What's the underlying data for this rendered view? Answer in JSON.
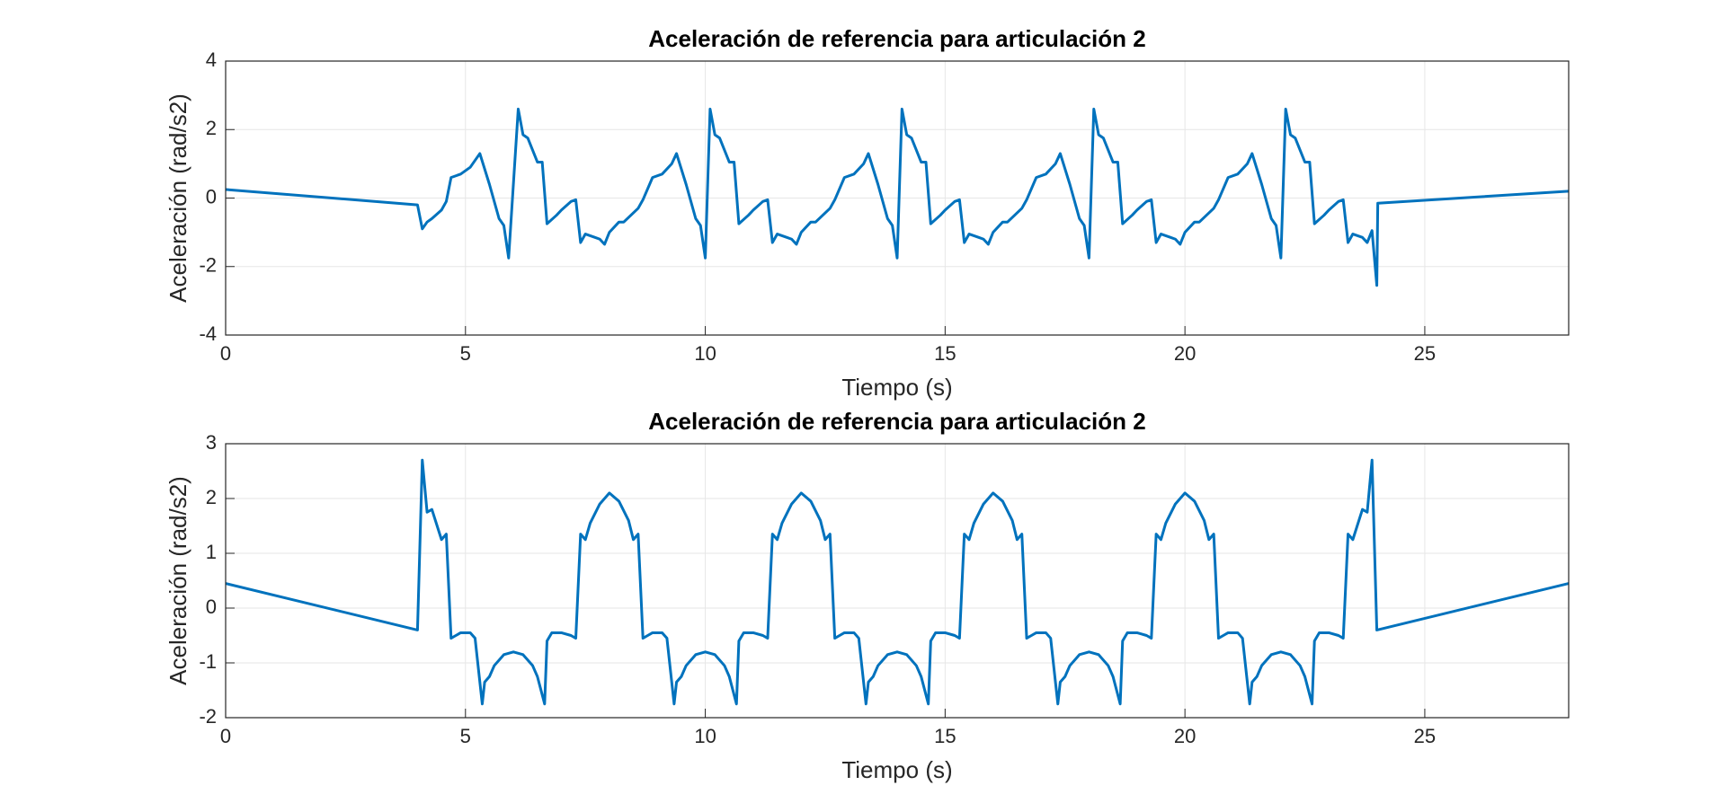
{
  "chart_data": [
    {
      "type": "line",
      "title": "Aceleración de referencia para articulación 2",
      "xlabel": "Tiempo (s)",
      "ylabel": "Aceleración (rad/s2)",
      "xlim": [
        0,
        28
      ],
      "xticks": [
        0,
        5,
        10,
        15,
        20,
        25
      ],
      "ylim": [
        -4,
        4
      ],
      "yticks": [
        -4,
        -2,
        0,
        2,
        4
      ],
      "grid": true,
      "x": [
        0,
        4.0,
        4.1,
        4.2,
        4.3,
        4.5,
        4.6,
        4.7,
        4.9,
        5.1,
        5.3,
        5.5,
        5.7,
        5.8,
        5.9,
        6.1,
        6.2,
        6.3,
        6.5,
        6.6,
        6.7,
        6.9,
        7.0,
        7.2,
        7.3,
        7.4,
        7.5,
        7.7,
        7.8,
        7.9,
        8.0,
        8.2,
        8.3,
        8.6,
        8.7,
        8.9,
        9.1,
        9.3,
        9.4,
        9.6,
        9.8,
        9.9,
        10.0,
        10.1,
        10.2,
        10.3,
        10.5,
        10.6,
        10.7,
        10.9,
        11.0,
        11.2,
        11.3,
        11.4,
        11.5,
        11.7,
        11.8,
        11.9,
        12.0,
        12.2,
        12.3,
        12.6,
        12.7,
        12.9,
        13.1,
        13.3,
        13.4,
        13.6,
        13.8,
        13.9,
        14.0,
        14.1,
        14.2,
        14.3,
        14.5,
        14.6,
        14.7,
        14.9,
        15.0,
        15.2,
        15.3,
        15.4,
        15.5,
        15.7,
        15.8,
        15.9,
        16.0,
        16.2,
        16.3,
        16.6,
        16.7,
        16.9,
        17.1,
        17.3,
        17.4,
        17.6,
        17.8,
        17.9,
        18.0,
        18.1,
        18.2,
        18.3,
        18.5,
        18.6,
        18.7,
        18.9,
        19.0,
        19.2,
        19.3,
        19.4,
        19.5,
        19.7,
        19.8,
        19.9,
        20.0,
        20.2,
        20.3,
        20.6,
        20.7,
        20.9,
        21.1,
        21.3,
        21.4,
        21.6,
        21.8,
        21.9,
        22.0,
        22.1,
        22.2,
        22.3,
        22.5,
        22.6,
        22.7,
        22.9,
        23.0,
        23.2,
        23.3,
        23.4,
        23.5,
        23.7,
        23.8,
        23.9,
        24.0,
        24.02,
        28
      ],
      "series": [
        {
          "color": "#0072BD",
          "values": [
            0.25,
            -0.2,
            -0.9,
            -0.7,
            -0.6,
            -0.35,
            -0.1,
            0.6,
            0.7,
            0.9,
            1.3,
            0.4,
            -0.6,
            -0.8,
            -1.75,
            2.6,
            1.85,
            1.75,
            1.05,
            1.05,
            -0.75,
            -0.5,
            -0.35,
            -0.1,
            -0.05,
            -1.3,
            -1.05,
            -1.15,
            -1.2,
            -1.35,
            -1.0,
            -0.7,
            -0.7,
            -0.3,
            -0.05,
            0.6,
            0.7,
            1.0,
            1.3,
            0.4,
            -0.6,
            -0.8,
            -1.75,
            2.6,
            1.85,
            1.75,
            1.05,
            1.05,
            -0.75,
            -0.5,
            -0.35,
            -0.1,
            -0.05,
            -1.3,
            -1.05,
            -1.15,
            -1.2,
            -1.35,
            -1.0,
            -0.7,
            -0.7,
            -0.3,
            -0.05,
            0.6,
            0.7,
            1.0,
            1.3,
            0.4,
            -0.6,
            -0.8,
            -1.75,
            2.6,
            1.85,
            1.75,
            1.05,
            1.05,
            -0.75,
            -0.5,
            -0.35,
            -0.1,
            -0.05,
            -1.3,
            -1.05,
            -1.15,
            -1.2,
            -1.35,
            -1.0,
            -0.7,
            -0.7,
            -0.3,
            -0.05,
            0.6,
            0.7,
            1.0,
            1.3,
            0.4,
            -0.6,
            -0.8,
            -1.75,
            2.6,
            1.85,
            1.75,
            1.05,
            1.05,
            -0.75,
            -0.5,
            -0.35,
            -0.1,
            -0.05,
            -1.3,
            -1.05,
            -1.15,
            -1.2,
            -1.35,
            -1.0,
            -0.7,
            -0.7,
            -0.3,
            -0.05,
            0.6,
            0.7,
            1.0,
            1.3,
            0.4,
            -0.6,
            -0.8,
            -1.75,
            2.6,
            1.85,
            1.75,
            1.05,
            1.05,
            -0.75,
            -0.5,
            -0.35,
            -0.1,
            -0.05,
            -1.3,
            -1.05,
            -1.15,
            -1.3,
            -0.95,
            -2.55,
            -0.15,
            0.2
          ]
        }
      ]
    },
    {
      "type": "line",
      "title": "Aceleración de referencia para articulación 2",
      "xlabel": "Tiempo (s)",
      "ylabel": "Aceleración (rad/s2)",
      "xlim": [
        0,
        28
      ],
      "xticks": [
        0,
        5,
        10,
        15,
        20,
        25
      ],
      "ylim": [
        -2,
        3
      ],
      "yticks": [
        -2,
        -1,
        0,
        1,
        2,
        3
      ],
      "grid": true,
      "x": [
        0,
        4.0,
        4.1,
        4.2,
        4.3,
        4.5,
        4.6,
        4.7,
        4.8,
        4.9,
        5.1,
        5.2,
        5.35,
        5.4,
        5.5,
        5.6,
        5.8,
        6.0,
        6.2,
        6.4,
        6.5,
        6.65,
        6.7,
        6.8,
        7.0,
        7.2,
        7.3,
        7.4,
        7.5,
        7.6,
        7.8,
        8.0,
        8.2,
        8.4,
        8.5,
        8.6,
        8.7,
        8.8,
        8.9,
        9.1,
        9.2,
        9.35,
        9.4,
        9.5,
        9.6,
        9.8,
        10.0,
        10.2,
        10.4,
        10.5,
        10.65,
        10.7,
        10.8,
        11.0,
        11.2,
        11.3,
        11.4,
        11.5,
        11.6,
        11.8,
        12.0,
        12.2,
        12.4,
        12.5,
        12.6,
        12.7,
        12.8,
        12.9,
        13.1,
        13.2,
        13.35,
        13.4,
        13.5,
        13.6,
        13.8,
        14.0,
        14.2,
        14.4,
        14.5,
        14.65,
        14.7,
        14.8,
        15.0,
        15.2,
        15.3,
        15.4,
        15.5,
        15.6,
        15.8,
        16.0,
        16.2,
        16.4,
        16.5,
        16.6,
        16.7,
        16.8,
        16.9,
        17.1,
        17.2,
        17.35,
        17.4,
        17.5,
        17.6,
        17.8,
        18.0,
        18.2,
        18.4,
        18.5,
        18.65,
        18.7,
        18.8,
        19.0,
        19.2,
        19.3,
        19.4,
        19.5,
        19.6,
        19.8,
        20.0,
        20.2,
        20.4,
        20.5,
        20.6,
        20.7,
        20.8,
        20.9,
        21.1,
        21.2,
        21.35,
        21.4,
        21.5,
        21.6,
        21.8,
        22.0,
        22.2,
        22.4,
        22.5,
        22.65,
        22.7,
        22.8,
        23.0,
        23.2,
        23.3,
        23.4,
        23.5,
        23.7,
        23.8,
        23.9,
        24.0,
        28
      ],
      "series": [
        {
          "color": "#0072BD",
          "values": [
            0.45,
            -0.4,
            2.7,
            1.75,
            1.8,
            1.25,
            1.35,
            -0.55,
            -0.5,
            -0.45,
            -0.45,
            -0.55,
            -1.75,
            -1.35,
            -1.25,
            -1.05,
            -0.85,
            -0.8,
            -0.85,
            -1.05,
            -1.25,
            -1.75,
            -0.6,
            -0.45,
            -0.45,
            -0.5,
            -0.55,
            1.35,
            1.25,
            1.55,
            1.9,
            2.1,
            1.95,
            1.6,
            1.25,
            1.35,
            -0.55,
            -0.5,
            -0.45,
            -0.45,
            -0.55,
            -1.75,
            -1.35,
            -1.25,
            -1.05,
            -0.85,
            -0.8,
            -0.85,
            -1.05,
            -1.25,
            -1.75,
            -0.6,
            -0.45,
            -0.45,
            -0.5,
            -0.55,
            1.35,
            1.25,
            1.55,
            1.9,
            2.1,
            1.95,
            1.6,
            1.25,
            1.35,
            -0.55,
            -0.5,
            -0.45,
            -0.45,
            -0.55,
            -1.75,
            -1.35,
            -1.25,
            -1.05,
            -0.85,
            -0.8,
            -0.85,
            -1.05,
            -1.25,
            -1.75,
            -0.6,
            -0.45,
            -0.45,
            -0.5,
            -0.55,
            1.35,
            1.25,
            1.55,
            1.9,
            2.1,
            1.95,
            1.6,
            1.25,
            1.35,
            -0.55,
            -0.5,
            -0.45,
            -0.45,
            -0.55,
            -1.75,
            -1.35,
            -1.25,
            -1.05,
            -0.85,
            -0.8,
            -0.85,
            -1.05,
            -1.25,
            -1.75,
            -0.6,
            -0.45,
            -0.45,
            -0.5,
            -0.55,
            1.35,
            1.25,
            1.55,
            1.9,
            2.1,
            1.95,
            1.6,
            1.25,
            1.35,
            -0.55,
            -0.5,
            -0.45,
            -0.45,
            -0.55,
            -1.75,
            -1.35,
            -1.25,
            -1.05,
            -0.85,
            -0.8,
            -0.85,
            -1.05,
            -1.25,
            -1.75,
            -0.6,
            -0.45,
            -0.45,
            -0.5,
            -0.55,
            1.35,
            1.25,
            1.8,
            1.75,
            2.7,
            -0.4,
            0.45
          ]
        }
      ]
    }
  ]
}
